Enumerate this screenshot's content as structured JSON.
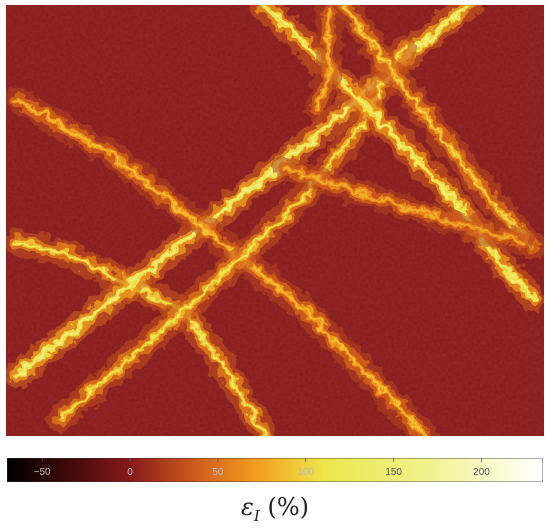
{
  "chart_data": {
    "type": "heatmap",
    "title": "",
    "colorbar": {
      "label_symbol": "ε",
      "label_subscript": "I",
      "label_unit": "(%)",
      "range": [
        -70,
        235
      ],
      "ticks": [
        -50,
        0,
        50,
        100,
        150,
        200
      ],
      "tick_labels": [
        "−50",
        "0",
        "50",
        "100",
        "150",
        "200"
      ],
      "colormap": [
        {
          "value": -70,
          "color": "#000000"
        },
        {
          "value": -30,
          "color": "#4a0b0b"
        },
        {
          "value": 0,
          "color": "#861a1a"
        },
        {
          "value": 40,
          "color": "#d2601c"
        },
        {
          "value": 70,
          "color": "#f39a1c"
        },
        {
          "value": 110,
          "color": "#ece64a"
        },
        {
          "value": 170,
          "color": "#f1f28e"
        },
        {
          "value": 235,
          "color": "#ffffff"
        }
      ]
    },
    "field": {
      "background_strain": 0,
      "shear_bands": [
        {
          "id": "band-1",
          "path": [
            [
              0.02,
              0.55
            ],
            [
              0.12,
              0.58
            ],
            [
              0.25,
              0.66
            ],
            [
              0.33,
              0.71
            ],
            [
              0.4,
              0.83
            ],
            [
              0.45,
              0.93
            ],
            [
              0.48,
              1.0
            ]
          ],
          "peak_strain": 120
        },
        {
          "id": "band-2",
          "path": [
            [
              0.02,
              0.86
            ],
            [
              0.2,
              0.68
            ],
            [
              0.4,
              0.48
            ],
            [
              0.58,
              0.3
            ],
            [
              0.78,
              0.08
            ],
            [
              0.86,
              0.0
            ]
          ],
          "peak_strain": 150
        },
        {
          "id": "band-3",
          "path": [
            [
              0.02,
              0.22
            ],
            [
              0.2,
              0.35
            ],
            [
              0.35,
              0.5
            ],
            [
              0.55,
              0.7
            ],
            [
              0.72,
              0.92
            ],
            [
              0.78,
              1.0
            ]
          ],
          "peak_strain": 90
        },
        {
          "id": "band-4",
          "path": [
            [
              0.1,
              0.96
            ],
            [
              0.25,
              0.8
            ],
            [
              0.4,
              0.63
            ],
            [
              0.55,
              0.45
            ],
            [
              0.66,
              0.28
            ],
            [
              0.74,
              0.1
            ]
          ],
          "peak_strain": 110
        },
        {
          "id": "band-5",
          "path": [
            [
              0.48,
              0.0
            ],
            [
              0.58,
              0.12
            ],
            [
              0.72,
              0.3
            ],
            [
              0.84,
              0.46
            ],
            [
              0.92,
              0.6
            ],
            [
              0.98,
              0.68
            ]
          ],
          "peak_strain": 140
        },
        {
          "id": "band-6",
          "path": [
            [
              0.63,
              0.0
            ],
            [
              0.72,
              0.16
            ],
            [
              0.82,
              0.32
            ],
            [
              0.9,
              0.45
            ],
            [
              0.98,
              0.56
            ]
          ],
          "peak_strain": 100
        },
        {
          "id": "band-7",
          "path": [
            [
              0.52,
              0.38
            ],
            [
              0.62,
              0.42
            ],
            [
              0.72,
              0.46
            ],
            [
              0.82,
              0.5
            ],
            [
              0.96,
              0.55
            ]
          ],
          "peak_strain": 80
        },
        {
          "id": "band-8",
          "path": [
            [
              0.6,
              0.02
            ],
            [
              0.6,
              0.16
            ],
            [
              0.58,
              0.24
            ]
          ],
          "peak_strain": 85
        }
      ]
    }
  }
}
